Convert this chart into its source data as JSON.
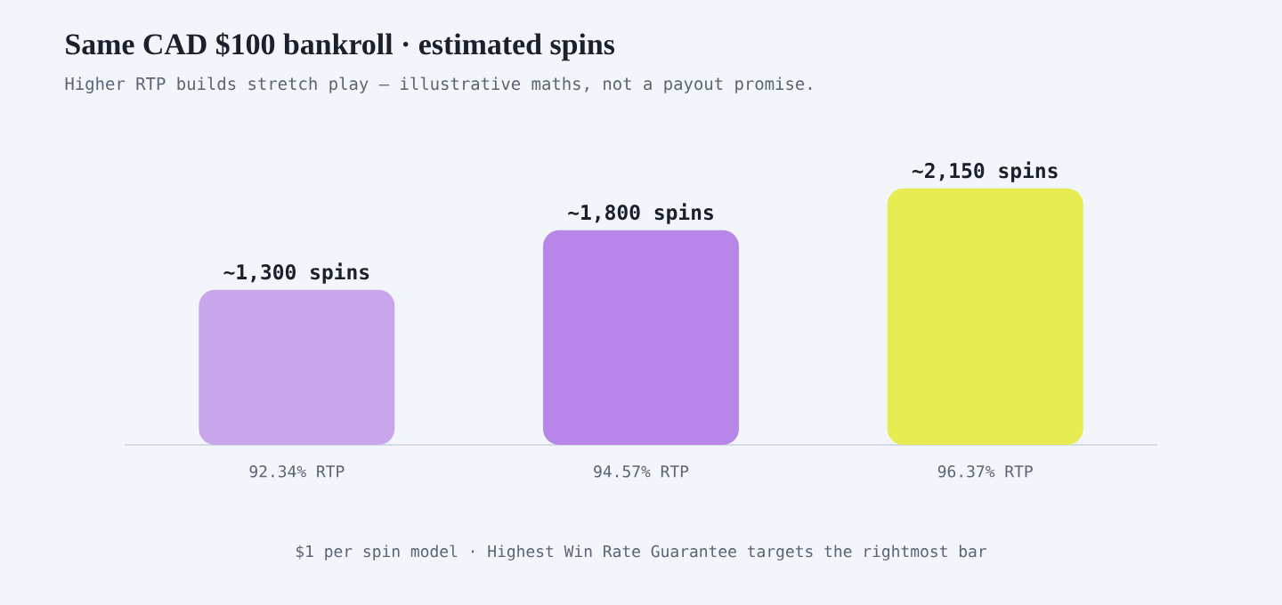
{
  "chart_data": {
    "type": "bar",
    "title": "Same CAD $100 bankroll · estimated spins",
    "subtitle": "Higher RTP builds stretch play — illustrative maths, not a payout promise.",
    "categories": [
      "92.34% RTP",
      "94.57% RTP",
      "96.37% RTP"
    ],
    "values": [
      1300,
      1800,
      2150
    ],
    "colors": [
      "#c9a6ec",
      "#b886e8",
      "#e6ec52"
    ],
    "value_labels": [
      "~1,300 spins",
      "~1,800 spins",
      "~2,150 spins"
    ],
    "annotations": [
      "$1 per spin model · Highest Win Rate Guarantee targets the rightmost bar"
    ]
  }
}
